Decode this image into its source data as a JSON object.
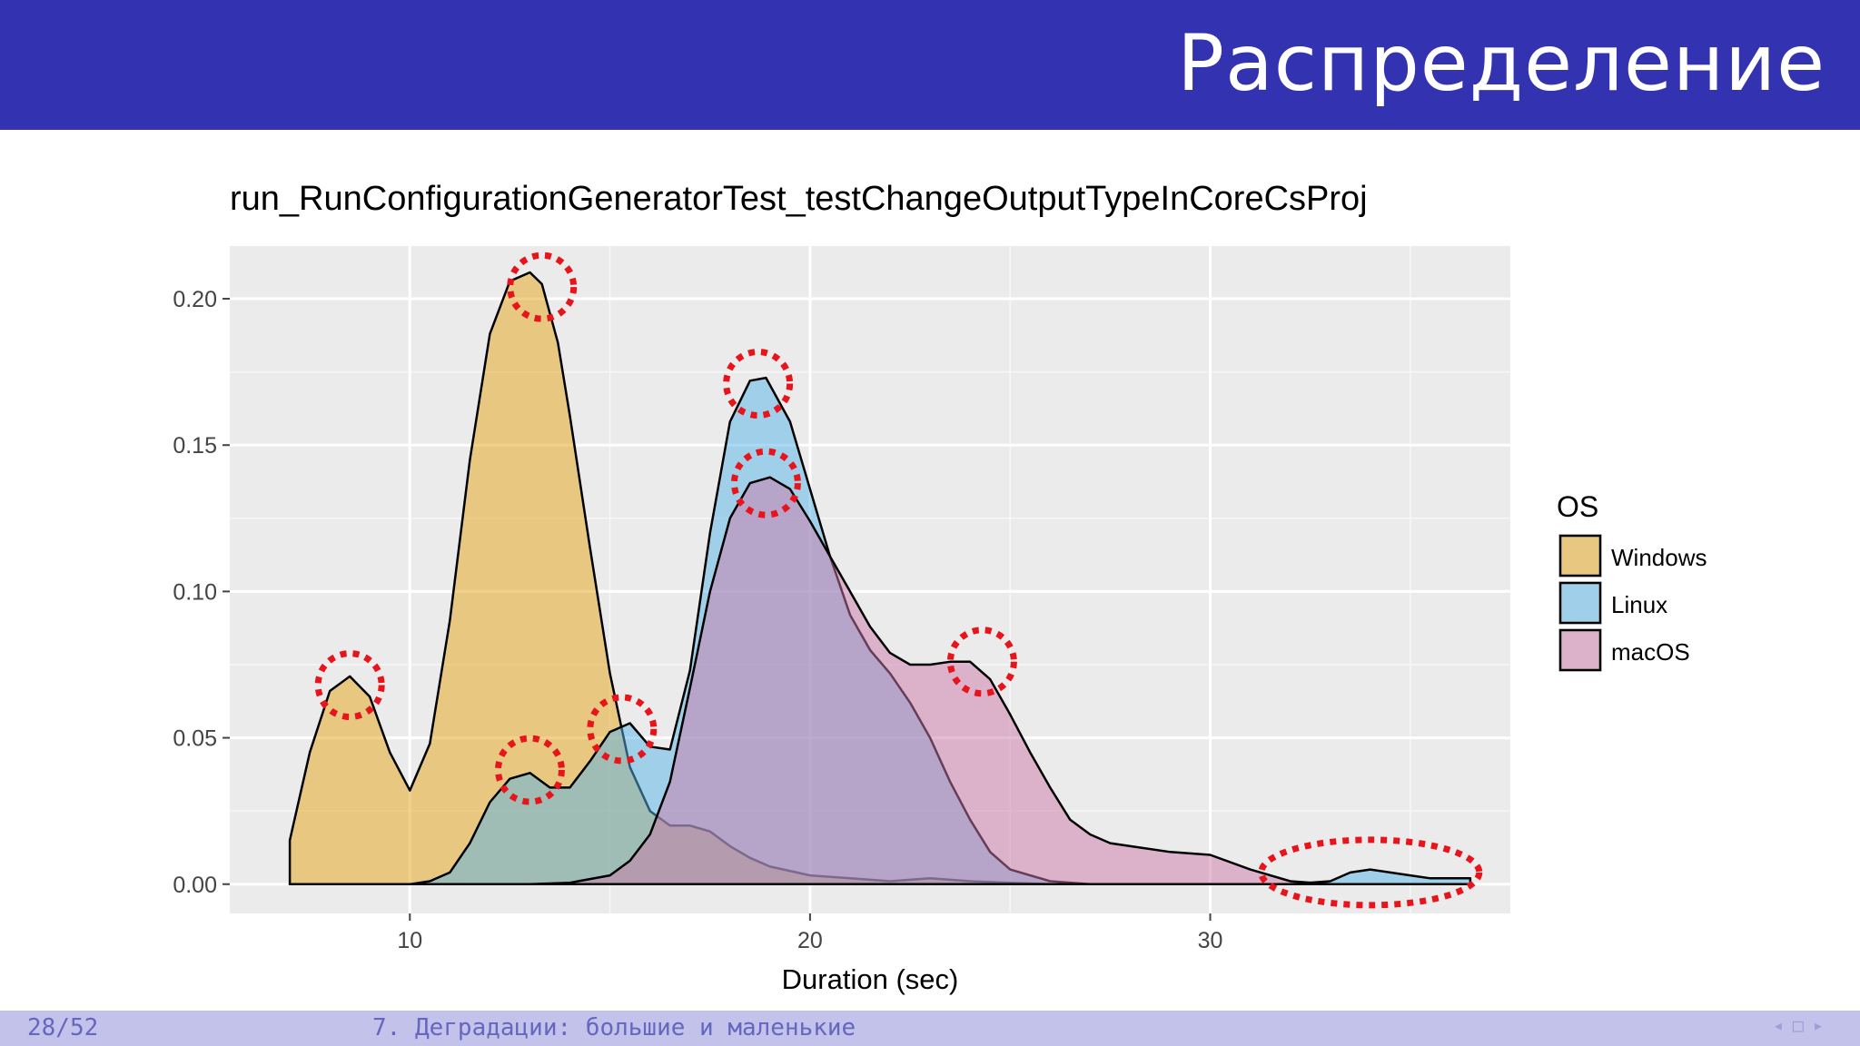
{
  "slide": {
    "title": "Распределение",
    "page_number": "28/52",
    "section": "7. Деградации: большие и маленькие",
    "nav": {
      "prev": "◂",
      "frame": "□",
      "next": "▸"
    }
  },
  "chart_data": {
    "type": "area",
    "title": "run_RunConfigurationGeneratorTest_testChangeOutputTypeInCoreCsProj",
    "xlabel": "Duration (sec)",
    "ylabel": "",
    "xlim": [
      5.5,
      37.5
    ],
    "ylim": [
      -0.01,
      0.218
    ],
    "xticks": [
      10,
      20,
      30
    ],
    "yticks": [
      0.0,
      0.05,
      0.1,
      0.15,
      0.2
    ],
    "ytick_labels": [
      "0.00",
      "0.05",
      "0.10",
      "0.15",
      "0.20"
    ],
    "grid": true,
    "legend": {
      "title": "OS",
      "position": "right",
      "items": [
        "Windows",
        "Linux",
        "macOS"
      ]
    },
    "series": [
      {
        "name": "Windows",
        "color": "#e6a317",
        "x": [
          7.0,
          7.5,
          8.0,
          8.5,
          9.0,
          9.5,
          10.0,
          10.5,
          11.0,
          11.5,
          12.0,
          12.5,
          13.0,
          13.3,
          13.7,
          14.0,
          14.5,
          15.0,
          15.5,
          16.0,
          16.5,
          17.0,
          17.5,
          18.0,
          18.5,
          19.0,
          20.0,
          21.0,
          22.0,
          23.0,
          24.0,
          25.0,
          26.0,
          27.0,
          28.0,
          29.0,
          30.0,
          31.0,
          32.0,
          33.0,
          34.0,
          35.0,
          36.0,
          36.5
        ],
        "y": [
          0.015,
          0.045,
          0.066,
          0.071,
          0.064,
          0.045,
          0.032,
          0.048,
          0.09,
          0.145,
          0.188,
          0.206,
          0.209,
          0.205,
          0.185,
          0.16,
          0.115,
          0.072,
          0.04,
          0.025,
          0.02,
          0.02,
          0.018,
          0.013,
          0.009,
          0.006,
          0.003,
          0.002,
          0.001,
          0.002,
          0.001,
          0.0005,
          0.0,
          0.0,
          0.0,
          0.0,
          0.0,
          0.0,
          0.0,
          0.0,
          0.0,
          0.0,
          0.0,
          0.0
        ]
      },
      {
        "name": "Linux",
        "color": "#56b4e9",
        "x": [
          7.0,
          10.0,
          10.5,
          11.0,
          11.5,
          12.0,
          12.5,
          13.0,
          13.5,
          14.0,
          14.5,
          15.0,
          15.5,
          16.0,
          16.5,
          17.0,
          17.5,
          18.0,
          18.5,
          18.9,
          19.5,
          20.0,
          20.5,
          21.0,
          21.5,
          22.0,
          22.5,
          23.0,
          23.5,
          24.0,
          24.5,
          25.0,
          26.0,
          27.0,
          28.0,
          29.0,
          30.0,
          31.0,
          32.0,
          33.0,
          33.5,
          34.0,
          34.5,
          35.0,
          35.5,
          36.0,
          36.5
        ],
        "y": [
          0.0,
          0.0,
          0.001,
          0.004,
          0.014,
          0.028,
          0.036,
          0.038,
          0.033,
          0.033,
          0.042,
          0.052,
          0.055,
          0.047,
          0.046,
          0.073,
          0.12,
          0.158,
          0.172,
          0.173,
          0.158,
          0.135,
          0.112,
          0.092,
          0.08,
          0.072,
          0.062,
          0.05,
          0.035,
          0.022,
          0.011,
          0.005,
          0.001,
          0.0,
          0.0,
          0.0,
          0.0,
          0.0,
          0.0,
          0.001,
          0.004,
          0.005,
          0.004,
          0.003,
          0.002,
          0.002,
          0.002
        ]
      },
      {
        "name": "macOS",
        "color": "#cc79a7",
        "x": [
          7.0,
          13.0,
          14.0,
          15.0,
          15.5,
          16.0,
          16.5,
          17.0,
          17.5,
          18.0,
          18.5,
          19.0,
          19.5,
          20.0,
          20.5,
          21.0,
          21.5,
          22.0,
          22.5,
          23.0,
          23.5,
          24.0,
          24.5,
          25.0,
          25.5,
          26.0,
          26.5,
          27.0,
          27.5,
          28.0,
          29.0,
          30.0,
          31.0,
          32.0,
          33.0,
          34.0,
          35.0,
          36.0,
          36.5
        ],
        "y": [
          0.0,
          0.0,
          0.0005,
          0.003,
          0.008,
          0.017,
          0.035,
          0.067,
          0.1,
          0.125,
          0.137,
          0.139,
          0.135,
          0.124,
          0.112,
          0.1,
          0.088,
          0.079,
          0.075,
          0.075,
          0.076,
          0.076,
          0.07,
          0.058,
          0.045,
          0.033,
          0.022,
          0.017,
          0.014,
          0.013,
          0.011,
          0.01,
          0.005,
          0.001,
          0.0,
          0.0,
          0.0,
          0.0,
          0.0
        ]
      }
    ],
    "annotations": [
      {
        "type": "dotted-circle",
        "x": 8.5,
        "y": 0.068
      },
      {
        "type": "dotted-circle",
        "x": 13.3,
        "y": 0.204
      },
      {
        "type": "dotted-circle",
        "x": 13.0,
        "y": 0.039
      },
      {
        "type": "dotted-circle",
        "x": 15.3,
        "y": 0.053
      },
      {
        "type": "dotted-circle",
        "x": 18.7,
        "y": 0.171
      },
      {
        "type": "dotted-circle",
        "x": 18.9,
        "y": 0.137
      },
      {
        "type": "dotted-circle",
        "x": 24.3,
        "y": 0.076
      },
      {
        "type": "dotted-ellipse",
        "x": 34.0,
        "y": 0.004
      }
    ]
  }
}
